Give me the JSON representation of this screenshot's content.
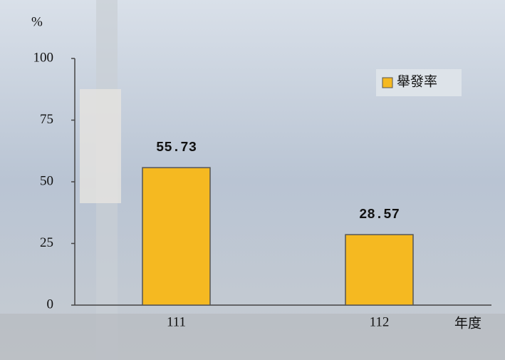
{
  "chart_data": {
    "type": "bar",
    "y_label": "%",
    "x_label": "年度",
    "categories": [
      "111",
      "112"
    ],
    "series": [
      {
        "name": "舉發率",
        "color": "#f5b921",
        "values": [
          55.73,
          28.57
        ]
      }
    ],
    "ylim": [
      0,
      100
    ],
    "yticks": [
      0,
      25,
      50,
      75,
      100
    ],
    "legend": "top-right"
  }
}
